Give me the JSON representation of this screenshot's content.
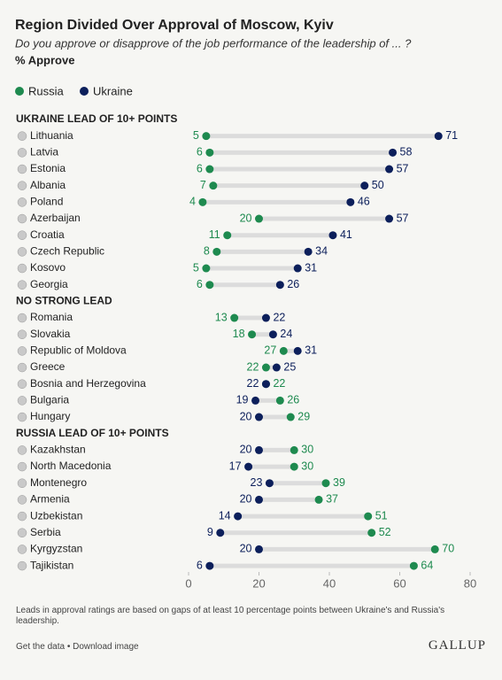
{
  "chart_data": {
    "type": "dumbbell",
    "title": "Region Divided Over Approval of Moscow, Kyiv",
    "subtitle": "Do you approve or disapprove of the job performance of the leadership of ... ?",
    "value_label": "% Approve",
    "groups": [
      {
        "label": "UKRAINE LEAD OF 10+ POINTS",
        "categories": [
          "Lithuania",
          "Latvia",
          "Estonia",
          "Albania",
          "Poland",
          "Azerbaijan",
          "Croatia",
          "Czech Republic",
          "Kosovo",
          "Georgia"
        ]
      },
      {
        "label": "NO STRONG LEAD",
        "categories": [
          "Romania",
          "Slovakia",
          "Republic of Moldova",
          "Greece",
          "Bosnia and Herzegovina",
          "Bulgaria",
          "Hungary"
        ]
      },
      {
        "label": "RUSSIA LEAD OF 10+ POINTS",
        "categories": [
          "Kazakhstan",
          "North Macedonia",
          "Montenegro",
          "Armenia",
          "Uzbekistan",
          "Serbia",
          "Kyrgyzstan",
          "Tajikistan"
        ]
      }
    ],
    "series": [
      {
        "name": "Russia",
        "color": "#1e8a4f",
        "values": [
          [
            5,
            6,
            6,
            7,
            4,
            20,
            11,
            8,
            5,
            6
          ],
          [
            13,
            18,
            27,
            22,
            22,
            26,
            29
          ],
          [
            30,
            30,
            39,
            37,
            51,
            52,
            70,
            64
          ]
        ]
      },
      {
        "name": "Ukraine",
        "color": "#0c1f5b",
        "values": [
          [
            71,
            58,
            57,
            50,
            46,
            57,
            41,
            34,
            31,
            26
          ],
          [
            22,
            24,
            31,
            25,
            22,
            19,
            20
          ],
          [
            20,
            17,
            23,
            20,
            14,
            9,
            20,
            6
          ]
        ]
      }
    ],
    "xlim": [
      0,
      80
    ],
    "xticks": [
      0,
      20,
      40,
      60,
      80
    ]
  },
  "footer": {
    "note": "Leads in approval ratings are based on gaps of at least 10 percentage points between Ukraine's and Russia's leadership.",
    "links": "Get the data • Download image",
    "brand": "GALLUP"
  }
}
